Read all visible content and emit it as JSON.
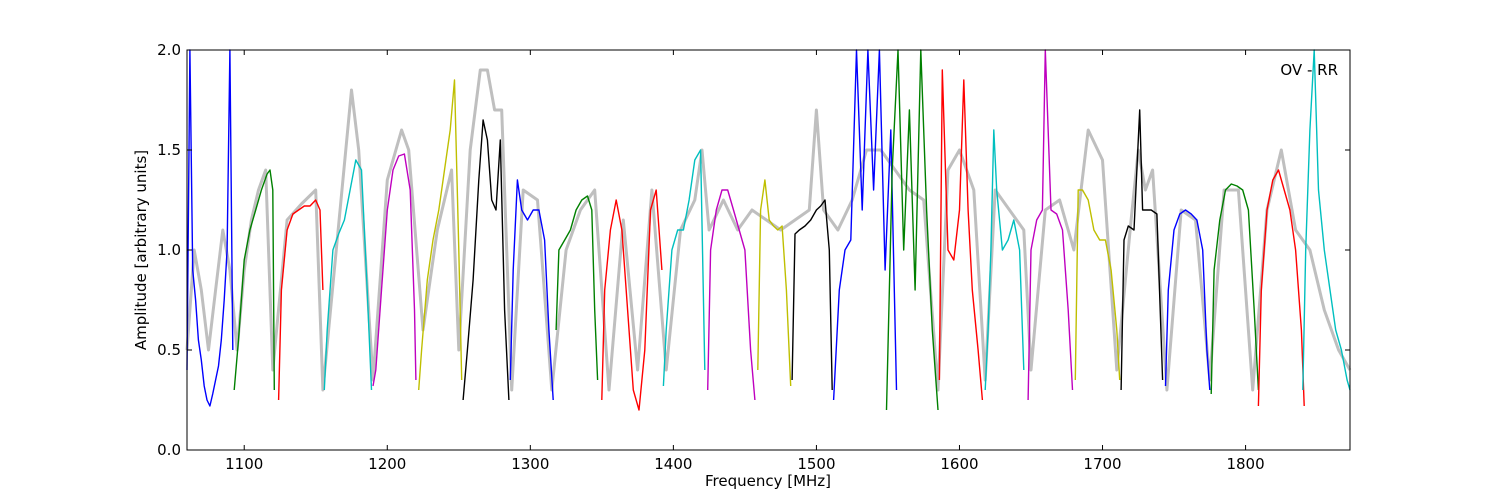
{
  "chart_data": {
    "type": "line",
    "title": "",
    "annotation": "OV - RR",
    "xlabel": "Frequency [MHz]",
    "ylabel": "Amplitude [arbitrary units]",
    "xlim": [
      1060,
      1873
    ],
    "ylim": [
      0,
      2
    ],
    "xticks": [
      1100,
      1200,
      1300,
      1400,
      1500,
      1600,
      1700,
      1800
    ],
    "yticks": [
      0.0,
      0.5,
      1.0,
      1.5,
      2.0
    ],
    "ytick_labels": [
      "0.0",
      "0.5",
      "1.0",
      "1.5",
      "2.0"
    ],
    "grid": false,
    "legend": "none",
    "background_series": {
      "name": "",
      "color": "#bfbfbf",
      "x": [
        1060,
        1065,
        1070,
        1075,
        1080,
        1085,
        1090,
        1095,
        1100,
        1105,
        1110,
        1115,
        1120,
        1130,
        1140,
        1150,
        1155,
        1165,
        1175,
        1180,
        1190,
        1200,
        1210,
        1215,
        1225,
        1235,
        1245,
        1250,
        1258,
        1265,
        1270,
        1275,
        1280,
        1287,
        1295,
        1305,
        1315,
        1325,
        1335,
        1345,
        1355,
        1365,
        1375,
        1385,
        1395,
        1405,
        1415,
        1420,
        1425,
        1435,
        1445,
        1455,
        1465,
        1475,
        1485,
        1495,
        1500,
        1505,
        1515,
        1525,
        1535,
        1545,
        1555,
        1565,
        1575,
        1585,
        1592,
        1600,
        1610,
        1618,
        1625,
        1635,
        1645,
        1650,
        1660,
        1670,
        1680,
        1690,
        1700,
        1710,
        1720,
        1725,
        1730,
        1735,
        1745,
        1755,
        1765,
        1775,
        1785,
        1795,
        1805,
        1815,
        1825,
        1835,
        1845,
        1855,
        1865,
        1873
      ],
      "y": [
        0.5,
        1.0,
        0.8,
        0.5,
        0.8,
        1.1,
        0.9,
        0.5,
        0.9,
        1.15,
        1.3,
        1.4,
        0.4,
        1.15,
        1.23,
        1.3,
        0.3,
        1.05,
        1.8,
        1.5,
        0.35,
        1.35,
        1.6,
        1.5,
        0.6,
        1.1,
        1.4,
        0.5,
        1.5,
        1.9,
        1.9,
        1.7,
        1.7,
        0.3,
        1.3,
        1.25,
        0.3,
        1.0,
        1.2,
        1.3,
        0.3,
        1.15,
        0.4,
        1.3,
        0.4,
        1.1,
        1.25,
        1.5,
        1.1,
        1.25,
        1.1,
        1.2,
        1.15,
        1.1,
        1.15,
        1.2,
        1.7,
        1.2,
        1.1,
        1.25,
        1.5,
        1.5,
        1.4,
        1.3,
        1.25,
        0.3,
        1.4,
        1.5,
        1.3,
        0.35,
        1.3,
        1.2,
        1.1,
        0.4,
        1.2,
        1.25,
        1.0,
        1.6,
        1.45,
        0.4,
        1.15,
        1.5,
        1.3,
        1.4,
        0.3,
        1.2,
        1.15,
        0.35,
        1.3,
        1.3,
        0.3,
        1.2,
        1.5,
        1.1,
        1.0,
        0.7,
        0.5,
        0.4
      ]
    },
    "series": [
      {
        "color": "#0000ff",
        "x": [
          1060,
          1062,
          1064,
          1066,
          1068,
          1070,
          1072,
          1074,
          1076,
          1078,
          1080,
          1082,
          1084,
          1086,
          1088,
          1090,
          1092
        ],
        "y": [
          0.4,
          2.0,
          0.9,
          0.75,
          0.55,
          0.45,
          0.32,
          0.25,
          0.22,
          0.28,
          0.35,
          0.42,
          0.55,
          0.75,
          1.0,
          2.0,
          0.5
        ]
      },
      {
        "color": "#008000",
        "x": [
          1093,
          1096,
          1100,
          1104,
          1108,
          1112,
          1116,
          1118,
          1120,
          1121
        ],
        "y": [
          0.3,
          0.55,
          0.95,
          1.1,
          1.2,
          1.3,
          1.38,
          1.4,
          1.3,
          0.3
        ]
      },
      {
        "color": "#ff0000",
        "x": [
          1124,
          1126,
          1130,
          1134,
          1138,
          1142,
          1146,
          1150,
          1153,
          1155
        ],
        "y": [
          0.25,
          0.8,
          1.1,
          1.18,
          1.2,
          1.22,
          1.22,
          1.25,
          1.2,
          0.8
        ]
      },
      {
        "color": "#00bfbf",
        "x": [
          1156,
          1158,
          1162,
          1166,
          1170,
          1174,
          1178,
          1182,
          1186,
          1189
        ],
        "y": [
          0.3,
          0.6,
          1.0,
          1.08,
          1.15,
          1.3,
          1.45,
          1.4,
          0.8,
          0.3
        ]
      },
      {
        "color": "#bf00bf",
        "x": [
          1190,
          1192,
          1196,
          1200,
          1204,
          1208,
          1212,
          1216,
          1219,
          1220
        ],
        "y": [
          0.32,
          0.4,
          0.8,
          1.2,
          1.4,
          1.47,
          1.48,
          1.3,
          0.7,
          0.35
        ]
      },
      {
        "color": "#bfbf00",
        "x": [
          1222,
          1224,
          1228,
          1232,
          1236,
          1240,
          1244,
          1247,
          1250,
          1252
        ],
        "y": [
          0.3,
          0.5,
          0.85,
          1.05,
          1.2,
          1.4,
          1.6,
          1.85,
          1.0,
          0.35
        ]
      },
      {
        "color": "#000000",
        "x": [
          1253,
          1256,
          1260,
          1264,
          1267,
          1270,
          1273,
          1276,
          1279,
          1282,
          1285
        ],
        "y": [
          0.25,
          0.5,
          0.85,
          1.35,
          1.65,
          1.55,
          1.25,
          1.2,
          1.55,
          0.7,
          0.25
        ]
      },
      {
        "color": "#0000ff",
        "x": [
          1286,
          1288,
          1291,
          1294,
          1298,
          1302,
          1306,
          1310,
          1313,
          1316
        ],
        "y": [
          0.35,
          0.9,
          1.35,
          1.2,
          1.15,
          1.2,
          1.2,
          1.05,
          0.6,
          0.25
        ]
      },
      {
        "color": "#008000",
        "x": [
          1318,
          1320,
          1324,
          1328,
          1332,
          1336,
          1340,
          1343,
          1345,
          1347
        ],
        "y": [
          0.6,
          1.0,
          1.05,
          1.1,
          1.2,
          1.25,
          1.27,
          1.2,
          0.7,
          0.35
        ]
      },
      {
        "color": "#ff0000",
        "x": [
          1350,
          1352,
          1356,
          1360,
          1364,
          1368,
          1372,
          1376,
          1380,
          1384,
          1388,
          1392
        ],
        "y": [
          0.25,
          0.8,
          1.1,
          1.25,
          1.1,
          0.7,
          0.3,
          0.2,
          0.5,
          1.2,
          1.3,
          0.9
        ]
      },
      {
        "color": "#00bfbf",
        "x": [
          1393,
          1395,
          1399,
          1403,
          1407,
          1411,
          1415,
          1419,
          1422
        ],
        "y": [
          0.32,
          0.6,
          1.0,
          1.1,
          1.1,
          1.25,
          1.45,
          1.5,
          0.4
        ]
      },
      {
        "color": "#bf00bf",
        "x": [
          1424,
          1426,
          1430,
          1434,
          1438,
          1442,
          1446,
          1450,
          1454,
          1457
        ],
        "y": [
          0.3,
          1.0,
          1.2,
          1.3,
          1.3,
          1.2,
          1.1,
          1.0,
          0.5,
          0.25
        ]
      },
      {
        "color": "#bfbf00",
        "x": [
          1459,
          1461,
          1464,
          1467,
          1470,
          1473,
          1476,
          1479,
          1482
        ],
        "y": [
          0.4,
          1.2,
          1.35,
          1.15,
          1.12,
          1.1,
          1.12,
          0.8,
          0.32
        ]
      },
      {
        "color": "#000000",
        "x": [
          1483,
          1485,
          1488,
          1492,
          1496,
          1500,
          1503,
          1506,
          1509,
          1511
        ],
        "y": [
          0.35,
          1.08,
          1.1,
          1.12,
          1.15,
          1.2,
          1.22,
          1.25,
          1.0,
          0.3
        ]
      },
      {
        "color": "#0000ff",
        "x": [
          1512,
          1516,
          1520,
          1524,
          1528,
          1532,
          1536,
          1540,
          1544,
          1548,
          1552,
          1556
        ],
        "y": [
          0.25,
          0.8,
          1.0,
          1.05,
          2.0,
          1.2,
          2.0,
          1.3,
          2.0,
          0.9,
          1.6,
          0.3
        ]
      },
      {
        "color": "#008000",
        "x": [
          1549,
          1553,
          1557,
          1561,
          1565,
          1569,
          1573,
          1577,
          1581,
          1585
        ],
        "y": [
          0.2,
          1.4,
          2.0,
          1.0,
          1.7,
          0.8,
          2.0,
          1.2,
          0.6,
          0.2
        ]
      },
      {
        "color": "#ff0000",
        "x": [
          1586,
          1588,
          1592,
          1596,
          1600,
          1603,
          1606,
          1609,
          1613,
          1616
        ],
        "y": [
          0.35,
          1.9,
          1.0,
          0.95,
          1.2,
          1.85,
          1.2,
          0.8,
          0.5,
          0.25
        ]
      },
      {
        "color": "#00bfbf",
        "x": [
          1618,
          1620,
          1622,
          1624,
          1626,
          1630,
          1634,
          1638,
          1642,
          1645
        ],
        "y": [
          0.3,
          0.6,
          1.0,
          1.6,
          1.3,
          1.0,
          1.05,
          1.15,
          1.0,
          0.4
        ]
      },
      {
        "color": "#bf00bf",
        "x": [
          1648,
          1650,
          1654,
          1658,
          1660,
          1664,
          1668,
          1672,
          1676,
          1679
        ],
        "y": [
          0.25,
          1.0,
          1.15,
          1.2,
          2.0,
          1.2,
          1.18,
          1.1,
          0.7,
          0.3
        ]
      },
      {
        "color": "#bfbf00",
        "x": [
          1681,
          1683,
          1686,
          1690,
          1694,
          1698,
          1702,
          1706,
          1710,
          1712
        ],
        "y": [
          0.35,
          1.3,
          1.3,
          1.25,
          1.1,
          1.05,
          1.05,
          0.9,
          0.6,
          0.35
        ]
      },
      {
        "color": "#000000",
        "x": [
          1713,
          1715,
          1718,
          1722,
          1726,
          1728,
          1730,
          1734,
          1738,
          1742
        ],
        "y": [
          0.3,
          1.05,
          1.12,
          1.1,
          1.7,
          1.2,
          1.2,
          1.2,
          1.18,
          0.35
        ]
      },
      {
        "color": "#0000ff",
        "x": [
          1744,
          1746,
          1750,
          1754,
          1758,
          1762,
          1766,
          1770,
          1773,
          1775
        ],
        "y": [
          0.32,
          0.8,
          1.1,
          1.18,
          1.2,
          1.18,
          1.15,
          1.0,
          0.5,
          0.3
        ]
      },
      {
        "color": "#008000",
        "x": [
          1776,
          1778,
          1782,
          1786,
          1790,
          1794,
          1798,
          1802,
          1806,
          1809
        ],
        "y": [
          0.28,
          0.9,
          1.15,
          1.3,
          1.33,
          1.32,
          1.3,
          1.2,
          0.7,
          0.3
        ]
      },
      {
        "color": "#ff0000",
        "x": [
          1809,
          1811,
          1815,
          1819,
          1823,
          1827,
          1831,
          1835,
          1839,
          1841
        ],
        "y": [
          0.22,
          0.8,
          1.2,
          1.35,
          1.4,
          1.3,
          1.2,
          1.0,
          0.6,
          0.22
        ]
      },
      {
        "color": "#00bfbf",
        "x": [
          1840,
          1842,
          1845,
          1848,
          1851,
          1855,
          1859,
          1863,
          1867,
          1871,
          1873
        ],
        "y": [
          0.3,
          1.0,
          1.6,
          2.0,
          1.3,
          1.0,
          0.8,
          0.6,
          0.5,
          0.35,
          0.3
        ]
      }
    ]
  }
}
